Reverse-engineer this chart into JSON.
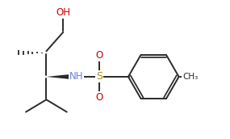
{
  "bg_color": "#ffffff",
  "line_color": "#2a2a2a",
  "o_color": "#cc0000",
  "s_color": "#b8860b",
  "nh_color": "#6688cc",
  "bond_lw": 1.4,
  "figsize": [
    2.85,
    1.72
  ],
  "dpi": 100,
  "xlim": [
    0,
    9.5
  ],
  "ylim": [
    0,
    5.7
  ]
}
